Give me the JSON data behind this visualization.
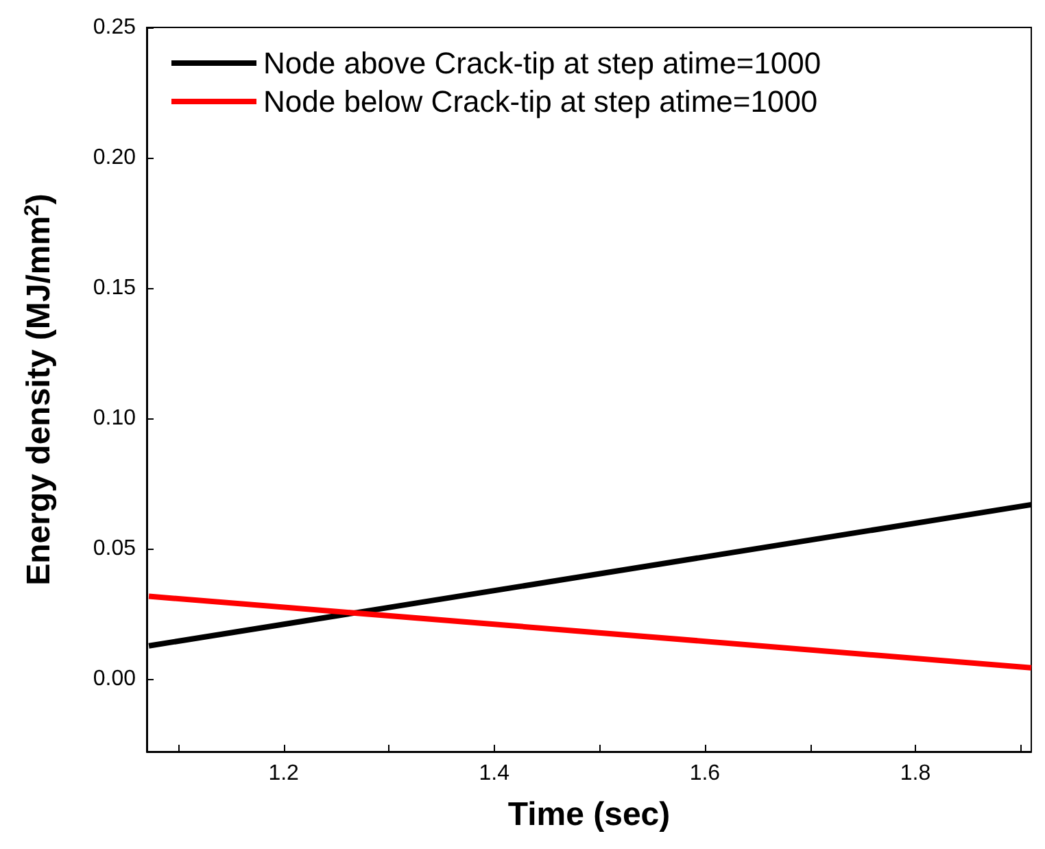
{
  "chart_data": {
    "type": "line",
    "xlabel": "Time (sec)",
    "ylabel": "Energy density (MJ/mm$^{2}$)",
    "xlim": [
      1.07,
      1.91
    ],
    "ylim": [
      -0.028,
      0.25
    ],
    "xticks": [
      {
        "value": 1.1,
        "label": null
      },
      1.2,
      {
        "value": 1.3,
        "label": null
      },
      1.4,
      {
        "value": 1.5,
        "label": null
      },
      1.6,
      {
        "value": 1.7,
        "label": null
      },
      1.8,
      {
        "value": 1.9,
        "label": null
      }
    ],
    "yticks": [
      {
        "value": 0,
        "label": "0.00"
      },
      0.05,
      {
        "value": 0.1,
        "label": "0.10"
      },
      0.15,
      {
        "value": 0.2,
        "label": "0.20"
      },
      0.25
    ],
    "x": [
      1.072,
      1.91
    ],
    "series": [
      {
        "name": "Node above Crack-tip at step atime=1000",
        "color": "#000000",
        "values": [
          0.0126,
          0.0668
        ]
      },
      {
        "name": "Node below Crack-tip at step atime=1000",
        "color": "#ff0000",
        "values": [
          0.0316,
          0.0042
        ]
      }
    ],
    "legend": "top left",
    "grid": false,
    "marker": "none",
    "line_style": "solid"
  }
}
